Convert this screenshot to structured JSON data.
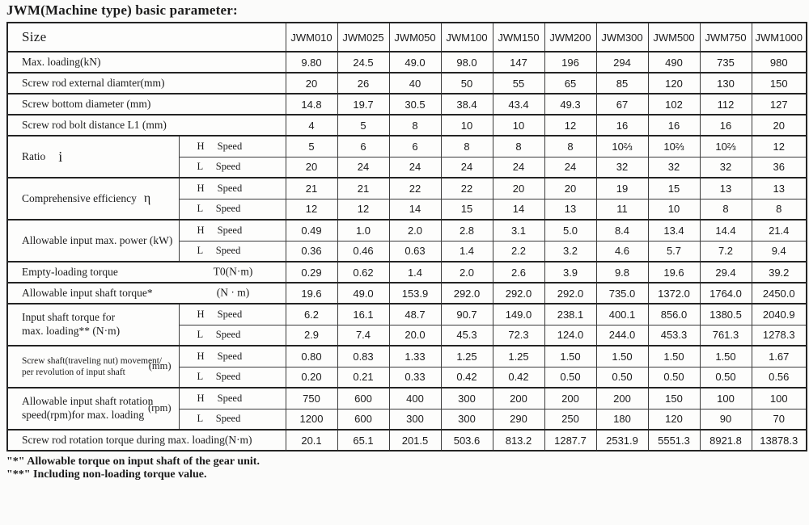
{
  "page": {
    "title": "JWM(Machine type) basic parameter:"
  },
  "colors": {
    "border": "#242424",
    "text": "#1b1b1b",
    "background": "#fbfbfa"
  },
  "table": {
    "header": {
      "size_label": "Size",
      "columns": [
        "JWM010",
        "JWM025",
        "JWM050",
        "JWM100",
        "JWM150",
        "JWM200",
        "JWM300",
        "JWM500",
        "JWM750",
        "JWM1000"
      ]
    },
    "speed_labels": {
      "h": "H Speed",
      "l": "L Speed"
    },
    "rows": [
      {
        "kind": "single",
        "label": "Max. loading(kN)",
        "values": [
          "9.80",
          "24.5",
          "49.0",
          "98.0",
          "147",
          "196",
          "294",
          "490",
          "735",
          "980"
        ]
      },
      {
        "kind": "single",
        "label": "Screw rod external diamter(mm)",
        "values": [
          "20",
          "26",
          "40",
          "50",
          "55",
          "65",
          "85",
          "120",
          "130",
          "150"
        ]
      },
      {
        "kind": "single",
        "label": "Screw bottom diameter (mm)",
        "values": [
          "14.8",
          "19.7",
          "30.5",
          "38.4",
          "43.4",
          "49.3",
          "67",
          "102",
          "112",
          "127"
        ]
      },
      {
        "kind": "single",
        "label": "Screw rod bolt distance L1 (mm)",
        "values": [
          "4",
          "5",
          "8",
          "10",
          "10",
          "12",
          "16",
          "16",
          "16",
          "20"
        ]
      },
      {
        "kind": "hl",
        "label": "Ratio",
        "symbol": "i",
        "h": [
          "5",
          "6",
          "6",
          "8",
          "8",
          "8",
          "10⅔",
          "10⅔",
          "10⅔",
          "12"
        ],
        "l": [
          "20",
          "24",
          "24",
          "24",
          "24",
          "24",
          "32",
          "32",
          "32",
          "36"
        ]
      },
      {
        "kind": "hl",
        "label": "Comprehensive efficiency",
        "symbol": "η",
        "h": [
          "21",
          "21",
          "22",
          "22",
          "20",
          "20",
          "19",
          "15",
          "13",
          "13"
        ],
        "l": [
          "12",
          "12",
          "14",
          "15",
          "14",
          "13",
          "11",
          "10",
          "8",
          "8"
        ]
      },
      {
        "kind": "hl",
        "label": "Allowable input max. power (kW)",
        "h": [
          "0.49",
          "1.0",
          "2.0",
          "2.8",
          "3.1",
          "5.0",
          "8.4",
          "13.4",
          "14.4",
          "21.4"
        ],
        "l": [
          "0.36",
          "0.46",
          "0.63",
          "1.4",
          "2.2",
          "3.2",
          "4.6",
          "5.7",
          "7.2",
          "9.4"
        ]
      },
      {
        "kind": "single",
        "label": "Empty-loading torque",
        "unit": "T0(N·m)",
        "values": [
          "0.29",
          "0.62",
          "1.4",
          "2.0",
          "2.6",
          "3.9",
          "9.8",
          "19.6",
          "29.4",
          "39.2"
        ]
      },
      {
        "kind": "single",
        "label": "Allowable input shaft torque*",
        "unit": "(N · m)",
        "values": [
          "19.6",
          "49.0",
          "153.9",
          "292.0",
          "292.0",
          "292.0",
          "735.0",
          "1372.0",
          "1764.0",
          "2450.0"
        ]
      },
      {
        "kind": "hl",
        "label": "Input shaft torque for\nmax. loading**  (N·m)",
        "h": [
          "6.2",
          "16.1",
          "48.7",
          "90.7",
          "149.0",
          "238.1",
          "400.1",
          "856.0",
          "1380.5",
          "2040.9"
        ],
        "l": [
          "2.9",
          "7.4",
          "20.0",
          "45.3",
          "72.3",
          "124.0",
          "244.0",
          "453.3",
          "761.3",
          "1278.3"
        ]
      },
      {
        "kind": "hl",
        "label": "Screw shaft(traveling nut) movement/\nper revolution of input shaft",
        "unit": "(mm)",
        "h": [
          "0.80",
          "0.83",
          "1.33",
          "1.25",
          "1.25",
          "1.50",
          "1.50",
          "1.50",
          "1.50",
          "1.67"
        ],
        "l": [
          "0.20",
          "0.21",
          "0.33",
          "0.42",
          "0.42",
          "0.50",
          "0.50",
          "0.50",
          "0.50",
          "0.56"
        ]
      },
      {
        "kind": "hl",
        "label": "Allowable input shaft rotation\nspeed(rpm)for max. loading",
        "unit": "(rpm)",
        "h": [
          "750",
          "600",
          "400",
          "300",
          "200",
          "200",
          "200",
          "150",
          "100",
          "100"
        ],
        "l": [
          "1200",
          "600",
          "300",
          "300",
          "290",
          "250",
          "180",
          "120",
          "90",
          "70"
        ]
      },
      {
        "kind": "single",
        "label": "Screw rod rotation torque during max. loading(N·m)",
        "values": [
          "20.1",
          "65.1",
          "201.5",
          "503.6",
          "813.2",
          "1287.7",
          "2531.9",
          "5551.3",
          "8921.8",
          "13878.3"
        ]
      }
    ]
  },
  "footnotes": [
    "\"*\" Allowable torque on input shaft of the gear unit.",
    "\"**\" Including non-loading torque value."
  ]
}
